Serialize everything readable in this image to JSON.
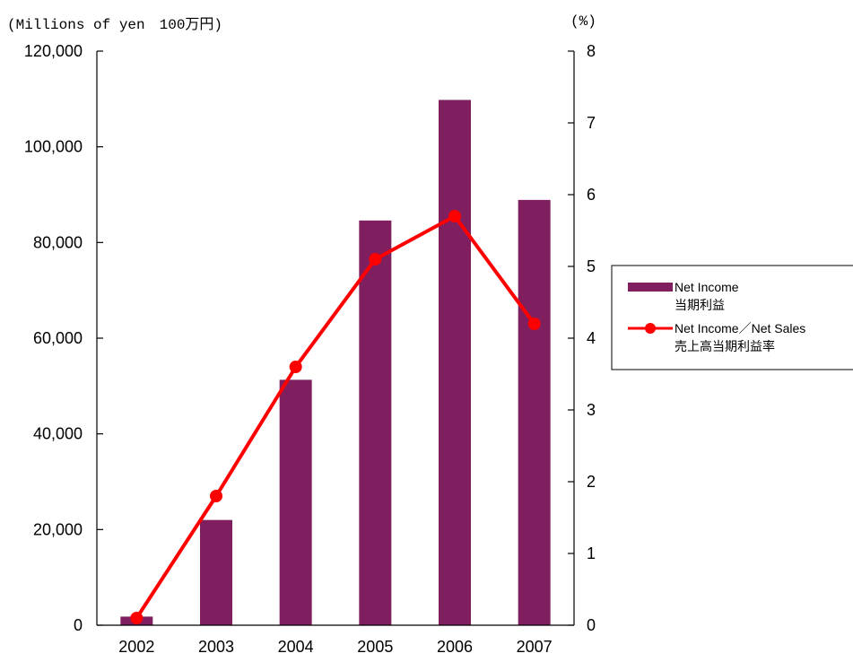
{
  "chart_data": {
    "type": "bar",
    "categories": [
      "2002",
      "2003",
      "2004",
      "2005",
      "2006",
      "2007"
    ],
    "series": [
      {
        "name": "Net Income",
        "name_ja": "当期利益",
        "type": "bar",
        "axis": "left",
        "color": "#7f1f5f",
        "values": [
          1800,
          22000,
          51300,
          84600,
          109800,
          88900
        ]
      },
      {
        "name": "Net Income／Net Sales",
        "name_ja": "売上高当期利益率",
        "type": "line",
        "axis": "right",
        "color": "#ff0000",
        "values": [
          0.1,
          1.8,
          3.6,
          5.1,
          5.7,
          4.2
        ]
      }
    ],
    "left_axis": {
      "unit_label": "(Millions of yen　100万円)",
      "range": [
        0,
        120000
      ],
      "ticks": [
        "0",
        "20,000",
        "40,000",
        "60,000",
        "80,000",
        "100,000",
        "120,000"
      ]
    },
    "right_axis": {
      "unit_label": "(%)",
      "range": [
        0,
        8
      ],
      "ticks": [
        "0",
        "1",
        "2",
        "3",
        "4",
        "5",
        "6",
        "7",
        "8"
      ]
    },
    "grid": false,
    "legend_position": "right"
  }
}
